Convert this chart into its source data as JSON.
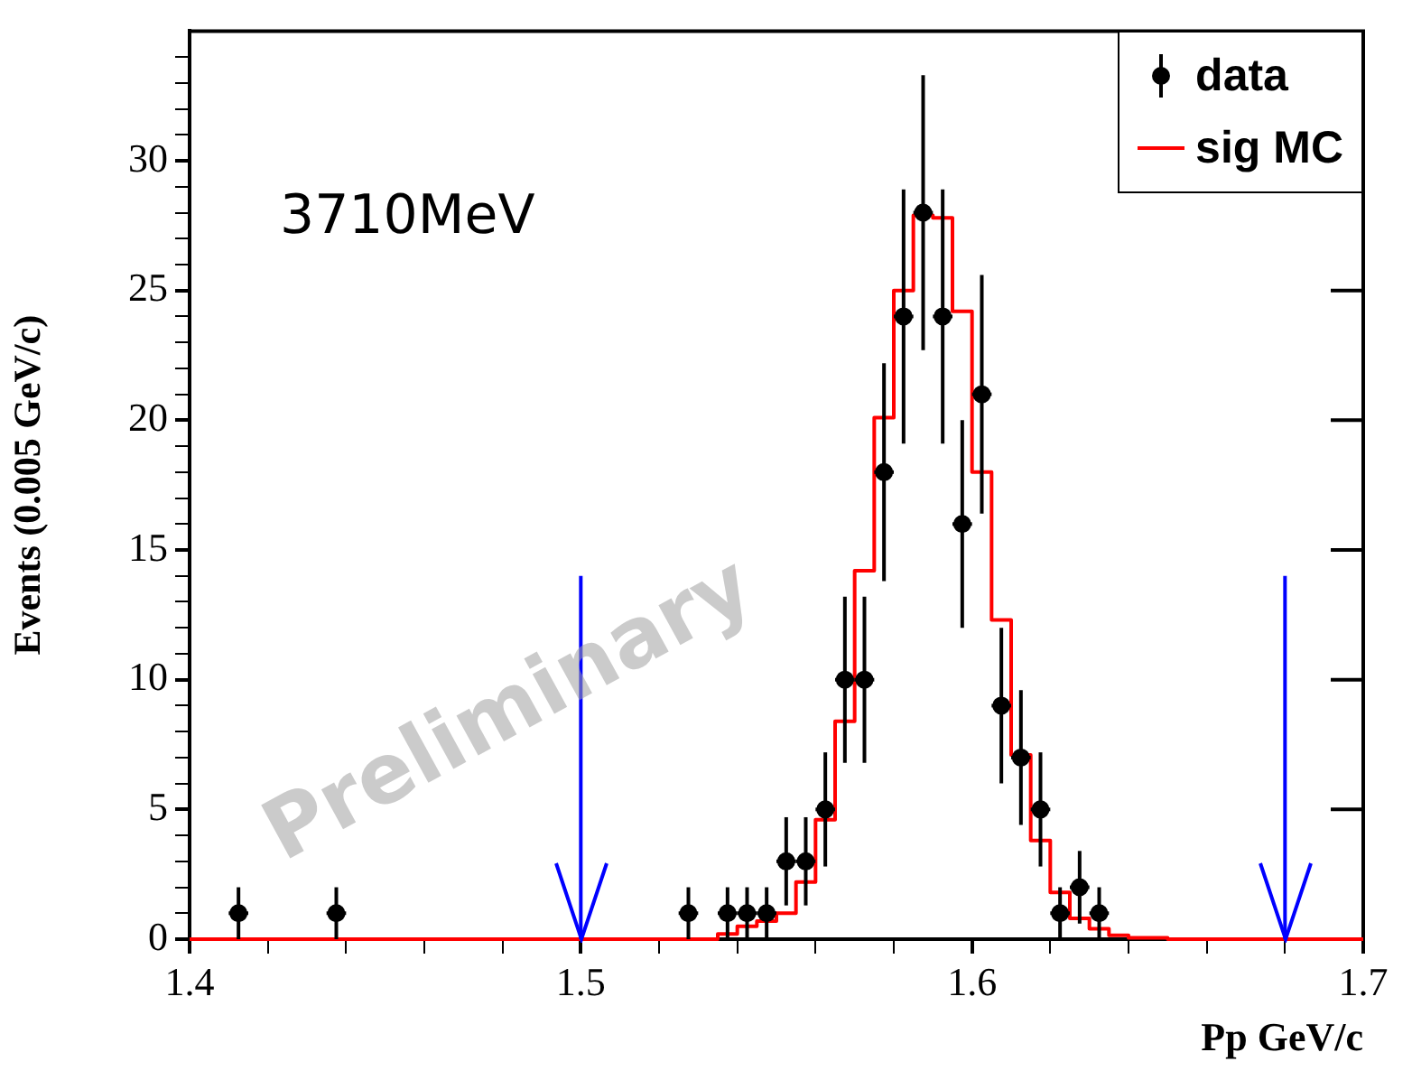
{
  "chart_data": {
    "type": "scatter",
    "xlabel": "Pp GeV/c",
    "ylabel": "Events (0.005 GeV/c)",
    "annotations": [
      "3710MeV",
      "Preliminary"
    ],
    "xlim": [
      1.4,
      1.7
    ],
    "ylim": [
      0,
      35
    ],
    "xticks": [
      1.4,
      {
        "value": 1.42,
        "label": null
      },
      {
        "value": 1.44,
        "label": null
      },
      {
        "value": 1.46,
        "label": null
      },
      {
        "value": 1.48,
        "label": null
      },
      1.5,
      {
        "value": 1.52,
        "label": null
      },
      {
        "value": 1.54,
        "label": null
      },
      {
        "value": 1.56,
        "label": null
      },
      {
        "value": 1.58,
        "label": null
      },
      1.6,
      {
        "value": 1.62,
        "label": null
      },
      {
        "value": 1.64,
        "label": null
      },
      {
        "value": 1.66,
        "label": null
      },
      {
        "value": 1.68,
        "label": null
      },
      1.7
    ],
    "yticks": [
      0,
      {
        "value": 1,
        "label": null
      },
      {
        "value": 2,
        "label": null
      },
      {
        "value": 3,
        "label": null
      },
      {
        "value": 4,
        "label": null
      },
      5,
      {
        "value": 6,
        "label": null
      },
      {
        "value": 7,
        "label": null
      },
      {
        "value": 8,
        "label": null
      },
      {
        "value": 9,
        "label": null
      },
      10,
      {
        "value": 11,
        "label": null
      },
      {
        "value": 12,
        "label": null
      },
      {
        "value": 13,
        "label": null
      },
      {
        "value": 14,
        "label": null
      },
      15,
      {
        "value": 16,
        "label": null
      },
      {
        "value": 17,
        "label": null
      },
      {
        "value": 18,
        "label": null
      },
      {
        "value": 19,
        "label": null
      },
      20,
      {
        "value": 21,
        "label": null
      },
      {
        "value": 22,
        "label": null
      },
      {
        "value": 23,
        "label": null
      },
      {
        "value": 24,
        "label": null
      },
      25,
      {
        "value": 26,
        "label": null
      },
      {
        "value": 27,
        "label": null
      },
      {
        "value": 28,
        "label": null
      },
      {
        "value": 29,
        "label": null
      },
      30,
      {
        "value": 31,
        "label": null
      },
      {
        "value": 32,
        "label": null
      },
      {
        "value": 33,
        "label": null
      },
      {
        "value": 34,
        "label": null
      }
    ],
    "grid": false,
    "legend": "top right",
    "marker": "circle",
    "ref_lines": [
      {
        "axis": "x",
        "value": 1.5,
        "color": "#0000ff"
      },
      {
        "axis": "x",
        "value": 1.68,
        "color": "#0000ff"
      }
    ],
    "series": [
      {
        "name": "data",
        "type": "scatter",
        "color": "#000000",
        "x": [
          1.4125,
          1.4375,
          1.5275,
          1.5375,
          1.5425,
          1.5475,
          1.5525,
          1.5575,
          1.5625,
          1.5675,
          1.5725,
          1.5775,
          1.5825,
          1.5875,
          1.5925,
          1.5975,
          1.6025,
          1.6075,
          1.6125,
          1.6175,
          1.6225,
          1.6275,
          1.6325
        ],
        "values": [
          1,
          1,
          1,
          1,
          1,
          1,
          3,
          3,
          5,
          10,
          10,
          18,
          24,
          28,
          24,
          16,
          21,
          9,
          7,
          5,
          1,
          2,
          1
        ],
        "errors": [
          1,
          1,
          1,
          1,
          1,
          1,
          1.7,
          1.7,
          2.2,
          3.2,
          3.2,
          4.2,
          4.9,
          5.3,
          4.9,
          4,
          4.6,
          3,
          2.6,
          2.2,
          1,
          1.4,
          1
        ],
        "xerrors": [
          0.0025,
          0.0025,
          0.0025,
          0.0025,
          0.0025,
          0.0025,
          0.0025,
          0.0025,
          0.0025,
          0.0025,
          0.0025,
          0.0025,
          0.0025,
          0.0025,
          0.0025,
          0.0025,
          0.0025,
          0.0025,
          0.0025,
          0.0025,
          0.0025,
          0.0025,
          0.0025
        ]
      },
      {
        "name": "sig MC",
        "type": "step",
        "color": "#ff0000",
        "marker": "none",
        "x": [
          1.4,
          1.535,
          1.54,
          1.545,
          1.55,
          1.555,
          1.56,
          1.565,
          1.57,
          1.575,
          1.58,
          1.585,
          1.59,
          1.595,
          1.6,
          1.605,
          1.61,
          1.615,
          1.62,
          1.625,
          1.63,
          1.635,
          1.64,
          1.65,
          1.7
        ],
        "values": [
          0,
          0.2,
          0.5,
          0.7,
          1.0,
          2.2,
          4.6,
          8.4,
          14.2,
          20.1,
          25,
          27.9,
          27.8,
          24.2,
          18,
          12.3,
          7.1,
          3.8,
          1.8,
          0.8,
          0.4,
          0.15,
          0.05,
          0,
          0
        ]
      }
    ]
  }
}
